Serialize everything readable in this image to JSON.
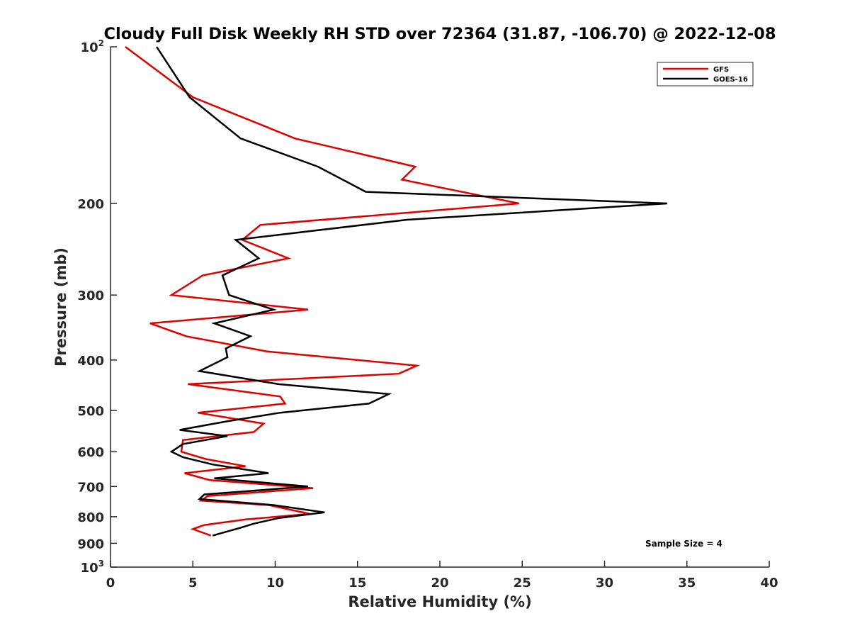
{
  "chart_data": {
    "type": "line",
    "title": "Cloudy Full Disk Weekly RH STD over 72364 (31.87, -106.70) @ 2022-12-08",
    "xlabel": "Relative Humidity (%)",
    "ylabel": "Pressure (mb)",
    "xlim": [
      0,
      40
    ],
    "ylim": [
      100,
      1000
    ],
    "yscale": "log",
    "y_reversed": true,
    "x_ticks": [
      0,
      5,
      10,
      15,
      20,
      25,
      30,
      35,
      40
    ],
    "x_tick_labels": [
      "0",
      "5",
      "10",
      "15",
      "20",
      "25",
      "30",
      "35",
      "40"
    ],
    "y_ticks": [
      {
        "value": 100,
        "base": "10",
        "exp": "2"
      },
      {
        "value": 200,
        "base": "200",
        "exp": ""
      },
      {
        "value": 300,
        "base": "300",
        "exp": ""
      },
      {
        "value": 400,
        "base": "400",
        "exp": ""
      },
      {
        "value": 500,
        "base": "500",
        "exp": ""
      },
      {
        "value": 600,
        "base": "600",
        "exp": ""
      },
      {
        "value": 700,
        "base": "700",
        "exp": ""
      },
      {
        "value": 800,
        "base": "800",
        "exp": ""
      },
      {
        "value": 900,
        "base": "900",
        "exp": ""
      },
      {
        "value": 1000,
        "base": "10",
        "exp": "3"
      }
    ],
    "grid": false,
    "legend_position": "top-right",
    "annotation": "Sample Size = 4",
    "series": [
      {
        "name": "GFS",
        "color": "#e00000",
        "points": [
          [
            0.9,
            100
          ],
          [
            5.0,
            125
          ],
          [
            11.2,
            150
          ],
          [
            18.5,
            170
          ],
          [
            17.7,
            180
          ],
          [
            24.8,
            200
          ],
          [
            9.1,
            220
          ],
          [
            8.0,
            235
          ],
          [
            10.8,
            255
          ],
          [
            5.6,
            275
          ],
          [
            3.7,
            300
          ],
          [
            12.0,
            320
          ],
          [
            2.4,
            340
          ],
          [
            4.6,
            360
          ],
          [
            9.5,
            385
          ],
          [
            18.6,
            410
          ],
          [
            17.5,
            425
          ],
          [
            4.7,
            445
          ],
          [
            10.3,
            470
          ],
          [
            10.6,
            485
          ],
          [
            5.3,
            505
          ],
          [
            9.3,
            530
          ],
          [
            8.7,
            550
          ],
          [
            4.4,
            570
          ],
          [
            4.3,
            600
          ],
          [
            5.8,
            620
          ],
          [
            8.2,
            640
          ],
          [
            4.5,
            660
          ],
          [
            6.0,
            680
          ],
          [
            12.3,
            705
          ],
          [
            5.9,
            730
          ],
          [
            5.5,
            745
          ],
          [
            9.6,
            760
          ],
          [
            12.1,
            790
          ],
          [
            8.2,
            810
          ],
          [
            5.7,
            830
          ],
          [
            5.0,
            845
          ],
          [
            6.1,
            870
          ]
        ]
      },
      {
        "name": "GOES-16",
        "color": "#000000",
        "points": [
          [
            2.8,
            100
          ],
          [
            4.8,
            125
          ],
          [
            7.9,
            150
          ],
          [
            12.6,
            170
          ],
          [
            15.5,
            190
          ],
          [
            33.8,
            200
          ],
          [
            18.0,
            215
          ],
          [
            7.6,
            235
          ],
          [
            9.0,
            255
          ],
          [
            6.8,
            275
          ],
          [
            7.2,
            300
          ],
          [
            9.9,
            320
          ],
          [
            6.3,
            340
          ],
          [
            8.5,
            360
          ],
          [
            7.0,
            380
          ],
          [
            7.1,
            395
          ],
          [
            5.4,
            420
          ],
          [
            10.2,
            445
          ],
          [
            16.9,
            465
          ],
          [
            15.7,
            485
          ],
          [
            10.3,
            505
          ],
          [
            7.0,
            525
          ],
          [
            4.2,
            545
          ],
          [
            7.1,
            560
          ],
          [
            4.4,
            580
          ],
          [
            3.7,
            600
          ],
          [
            4.4,
            615
          ],
          [
            6.2,
            635
          ],
          [
            9.6,
            660
          ],
          [
            6.3,
            675
          ],
          [
            12.0,
            700
          ],
          [
            5.7,
            725
          ],
          [
            5.4,
            740
          ],
          [
            9.9,
            760
          ],
          [
            13.0,
            785
          ],
          [
            10.2,
            805
          ],
          [
            8.7,
            825
          ],
          [
            7.9,
            840
          ],
          [
            6.2,
            870
          ]
        ]
      }
    ]
  }
}
